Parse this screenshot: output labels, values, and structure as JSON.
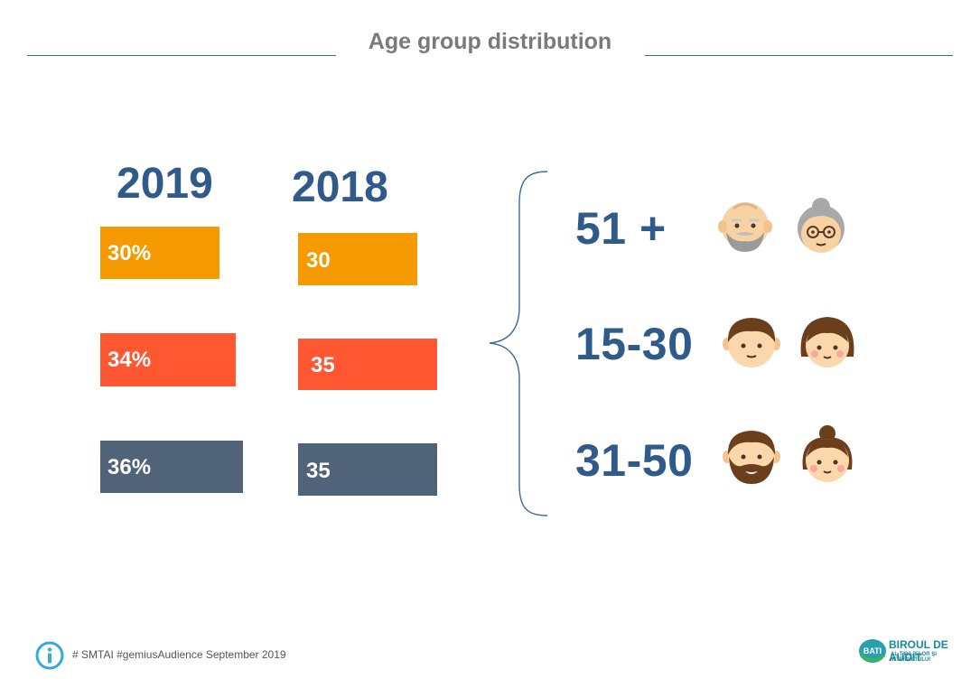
{
  "title": "Age group distribution",
  "colors": {
    "band_1": "#f59a00",
    "band_2": "#fe5731",
    "band_3": "#516378",
    "accent": "#2f5a8a"
  },
  "chart_data": {
    "type": "bar",
    "orientation": "horizontal",
    "categories": [
      "51 +",
      "15-30",
      "31-50"
    ],
    "series": [
      {
        "name": "2019",
        "values": [
          30,
          34,
          36
        ],
        "labels": [
          "30%",
          "34%",
          "36%"
        ]
      },
      {
        "name": "2018",
        "values": [
          30,
          35,
          35
        ],
        "labels": [
          "30",
          "35",
          "35"
        ]
      }
    ],
    "title": "Age group distribution",
    "xlabel": "",
    "ylabel": "",
    "xlim": [
      0,
      100
    ],
    "grid": false,
    "legend": "none"
  },
  "age_groups": [
    {
      "label": "51 +",
      "icons": [
        "old-man-icon",
        "old-woman-icon"
      ]
    },
    {
      "label": "15-30",
      "icons": [
        "young-man-icon",
        "young-woman-icon"
      ]
    },
    {
      "label": "31-50",
      "icons": [
        "bearded-man-icon",
        "woman-bun-icon"
      ]
    }
  ],
  "footer": {
    "source_text": "# SMTAI #gemiusAudience September  2019"
  },
  "logo": {
    "line1": "BIROUL DE AUDIT",
    "line2": "AL TIRAJELOR ŞI INTERNETULUI",
    "badge": "BATI"
  }
}
